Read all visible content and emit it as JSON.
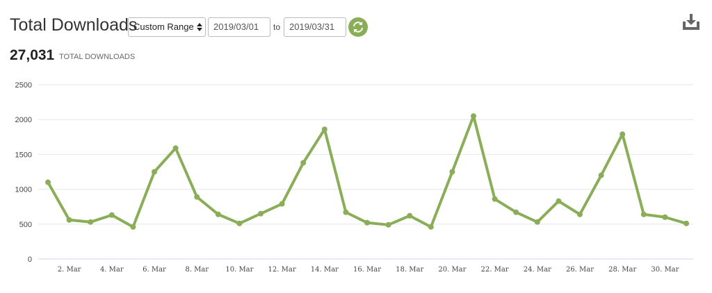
{
  "header": {
    "title": "Total Downloads",
    "range": "Custom Range",
    "from": "2019/03/01",
    "to_label": "to",
    "to": "2019/03/31",
    "total": "27,031",
    "total_label": "TOTAL DOWNLOADS"
  },
  "chart_data": {
    "type": "line",
    "color": "#8aad58",
    "grid": true,
    "categories": [
      null,
      "2. Mar",
      null,
      "4. Mar",
      null,
      "6. Mar",
      null,
      "8. Mar",
      null,
      "10. Mar",
      null,
      "12. Mar",
      null,
      "14. Mar",
      null,
      "16. Mar",
      null,
      "18. Mar",
      null,
      "20. Mar",
      null,
      "22. Mar",
      null,
      "24. Mar",
      null,
      "26. Mar",
      null,
      "28. Mar",
      null,
      "30. Mar",
      null
    ],
    "values": [
      1100,
      560,
      530,
      630,
      460,
      1250,
      1590,
      890,
      640,
      510,
      650,
      790,
      1380,
      1860,
      670,
      520,
      490,
      620,
      460,
      1250,
      2050,
      860,
      670,
      530,
      830,
      640,
      1200,
      1790,
      640,
      600,
      510
    ],
    "ylim": [
      0,
      2500
    ],
    "yticks": [
      0,
      500,
      1000,
      1500,
      2000,
      2500
    ]
  }
}
